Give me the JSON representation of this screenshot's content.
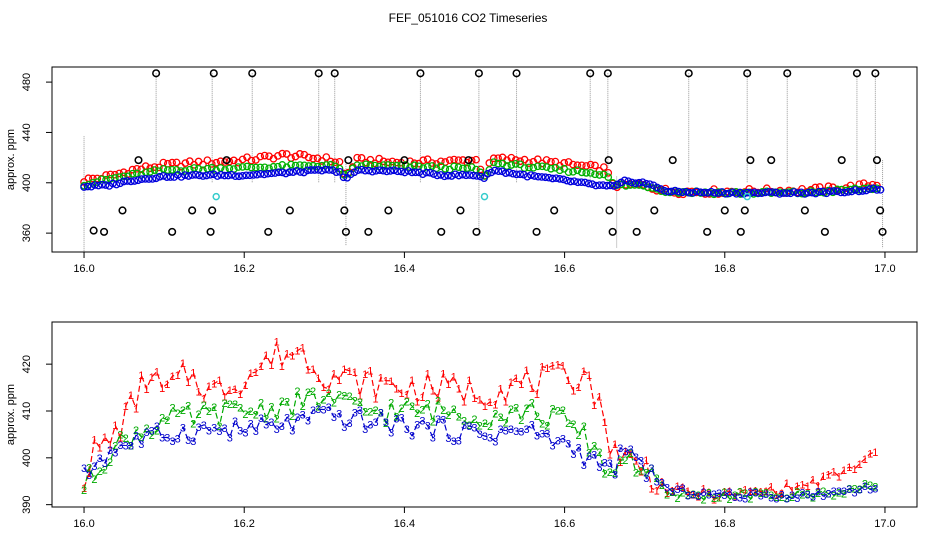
{
  "title": "FEF_051016  CO2 Timeseries",
  "chart_data": [
    {
      "type": "scatter",
      "panel": "top",
      "title": "FEF_051016  CO2 Timeseries",
      "xlabel": "",
      "ylabel": "approx. ppm",
      "xlim": [
        15.96,
        17.04
      ],
      "ylim": [
        345,
        492
      ],
      "xticks": [
        16.0,
        16.2,
        16.4,
        16.6,
        16.8,
        17.0
      ],
      "xtick_labels": [
        "16.0",
        "16.2",
        "16.4",
        "16.6",
        "16.8",
        "17.0"
      ],
      "yticks": [
        360,
        400,
        440,
        480
      ],
      "ytick_labels": [
        "360",
        "400",
        "440",
        "480"
      ],
      "series_colors": {
        "red": "#ff0000",
        "green": "#00b000",
        "blue": "#0000dd",
        "black": "#000000",
        "cyan": "#33cccc",
        "grey": "#999999"
      },
      "red_profile": [
        [
          16.0,
          402
        ],
        [
          16.03,
          405
        ],
        [
          16.06,
          410
        ],
        [
          16.1,
          414
        ],
        [
          16.15,
          416
        ],
        [
          16.2,
          418
        ],
        [
          16.25,
          422
        ],
        [
          16.3,
          419
        ],
        [
          16.32,
          416
        ],
        [
          16.326,
          404
        ],
        [
          16.34,
          418
        ],
        [
          16.4,
          416
        ],
        [
          16.45,
          417
        ],
        [
          16.49,
          418
        ],
        [
          16.5,
          406
        ],
        [
          16.51,
          419
        ],
        [
          16.55,
          418
        ],
        [
          16.6,
          415
        ],
        [
          16.65,
          411
        ],
        [
          16.662,
          398
        ],
        [
          16.7,
          398
        ],
        [
          16.73,
          393
        ],
        [
          16.8,
          393
        ],
        [
          16.9,
          394
        ],
        [
          16.95,
          396
        ],
        [
          16.99,
          399
        ]
      ],
      "green_profile": [
        [
          16.0,
          399
        ],
        [
          16.05,
          405
        ],
        [
          16.1,
          410
        ],
        [
          16.15,
          411
        ],
        [
          16.2,
          412
        ],
        [
          16.25,
          413
        ],
        [
          16.3,
          414
        ],
        [
          16.32,
          412
        ],
        [
          16.326,
          403
        ],
        [
          16.34,
          414
        ],
        [
          16.4,
          413
        ],
        [
          16.45,
          412
        ],
        [
          16.49,
          411
        ],
        [
          16.5,
          404
        ],
        [
          16.51,
          416
        ],
        [
          16.55,
          413
        ],
        [
          16.6,
          410
        ],
        [
          16.65,
          407
        ],
        [
          16.662,
          398
        ],
        [
          16.7,
          398
        ],
        [
          16.73,
          393
        ],
        [
          16.8,
          392
        ],
        [
          16.9,
          392
        ],
        [
          16.95,
          394
        ],
        [
          16.99,
          396
        ]
      ],
      "blue_profile": [
        [
          16.0,
          397
        ],
        [
          16.03,
          398
        ],
        [
          16.06,
          402
        ],
        [
          16.1,
          405
        ],
        [
          16.15,
          406
        ],
        [
          16.2,
          406
        ],
        [
          16.25,
          408
        ],
        [
          16.3,
          410
        ],
        [
          16.32,
          409
        ],
        [
          16.326,
          402
        ],
        [
          16.34,
          410
        ],
        [
          16.4,
          409
        ],
        [
          16.45,
          406
        ],
        [
          16.49,
          406
        ],
        [
          16.5,
          404
        ],
        [
          16.51,
          410
        ],
        [
          16.55,
          406
        ],
        [
          16.6,
          402
        ],
        [
          16.64,
          398
        ],
        [
          16.662,
          397
        ],
        [
          16.675,
          401
        ],
        [
          16.7,
          400
        ],
        [
          16.73,
          393
        ],
        [
          16.8,
          392
        ],
        [
          16.9,
          392
        ],
        [
          16.95,
          393
        ],
        [
          16.99,
          395
        ]
      ],
      "black_outliers": [
        [
          16.012,
          362
        ],
        [
          16.025,
          361
        ],
        [
          16.048,
          378
        ],
        [
          16.068,
          418
        ],
        [
          16.09,
          487
        ],
        [
          16.11,
          361
        ],
        [
          16.135,
          378
        ],
        [
          16.158,
          361
        ],
        [
          16.162,
          487
        ],
        [
          16.16,
          378
        ],
        [
          16.178,
          418
        ],
        [
          16.21,
          487
        ],
        [
          16.23,
          361
        ],
        [
          16.257,
          378
        ],
        [
          16.293,
          487
        ],
        [
          16.313,
          487
        ],
        [
          16.325,
          378
        ],
        [
          16.327,
          361
        ],
        [
          16.33,
          418
        ],
        [
          16.355,
          361
        ],
        [
          16.38,
          378
        ],
        [
          16.4,
          418
        ],
        [
          16.42,
          487
        ],
        [
          16.446,
          361
        ],
        [
          16.47,
          378
        ],
        [
          16.48,
          418
        ],
        [
          16.49,
          361
        ],
        [
          16.493,
          487
        ],
        [
          16.54,
          487
        ],
        [
          16.565,
          361
        ],
        [
          16.587,
          378
        ],
        [
          16.632,
          487
        ],
        [
          16.654,
          487
        ],
        [
          16.655,
          418
        ],
        [
          16.656,
          378
        ],
        [
          16.66,
          361
        ],
        [
          16.69,
          361
        ],
        [
          16.712,
          378
        ],
        [
          16.735,
          418
        ],
        [
          16.755,
          487
        ],
        [
          16.778,
          361
        ],
        [
          16.8,
          378
        ],
        [
          16.82,
          361
        ],
        [
          16.825,
          378
        ],
        [
          16.828,
          487
        ],
        [
          16.832,
          418
        ],
        [
          16.858,
          418
        ],
        [
          16.878,
          487
        ],
        [
          16.9,
          378
        ],
        [
          16.925,
          361
        ],
        [
          16.946,
          418
        ],
        [
          16.965,
          487
        ],
        [
          16.988,
          487
        ],
        [
          16.99,
          418
        ],
        [
          16.994,
          378
        ],
        [
          16.997,
          361
        ]
      ],
      "cyan_points": [
        [
          16.165,
          389
        ],
        [
          16.5,
          389
        ],
        [
          16.828,
          389
        ]
      ],
      "grey_spikes": [
        [
          16.0,
          345,
          437
        ],
        [
          16.09,
          400,
          487
        ],
        [
          16.16,
          400,
          487
        ],
        [
          16.21,
          400,
          487
        ],
        [
          16.293,
          400,
          487
        ],
        [
          16.313,
          400,
          487
        ],
        [
          16.327,
          350,
          418
        ],
        [
          16.42,
          400,
          487
        ],
        [
          16.493,
          358,
          487
        ],
        [
          16.54,
          400,
          487
        ],
        [
          16.632,
          400,
          487
        ],
        [
          16.654,
          400,
          487
        ],
        [
          16.665,
          348,
          405
        ],
        [
          16.755,
          400,
          487
        ],
        [
          16.828,
          400,
          487
        ],
        [
          16.878,
          400,
          487
        ],
        [
          16.965,
          400,
          487
        ],
        [
          16.988,
          400,
          487
        ],
        [
          16.997,
          348,
          418
        ]
      ]
    },
    {
      "type": "line",
      "panel": "bottom",
      "xlabel": "",
      "ylabel": "approx. ppm",
      "xlim": [
        15.96,
        17.04
      ],
      "ylim": [
        389.5,
        429
      ],
      "xticks": [
        16.0,
        16.2,
        16.4,
        16.6,
        16.8,
        17.0
      ],
      "xtick_labels": [
        "16.0",
        "16.2",
        "16.4",
        "16.6",
        "16.8",
        "17.0"
      ],
      "yticks": [
        390,
        400,
        410,
        420
      ],
      "ytick_labels": [
        "390",
        "400",
        "410",
        "420"
      ],
      "marker_labels": [
        "1",
        "2",
        "3"
      ],
      "series": [
        {
          "name": "1",
          "color": "#ff0000",
          "profile": [
            [
              16.0,
              396
            ],
            [
              16.01,
              401
            ],
            [
              16.03,
              403
            ],
            [
              16.06,
              411
            ],
            [
              16.08,
              418
            ],
            [
              16.1,
              414
            ],
            [
              16.13,
              418
            ],
            [
              16.16,
              414
            ],
            [
              16.2,
              417
            ],
            [
              16.24,
              422
            ],
            [
              16.27,
              423
            ],
            [
              16.3,
              418
            ],
            [
              16.35,
              416
            ],
            [
              16.4,
              415
            ],
            [
              16.45,
              415
            ],
            [
              16.5,
              414
            ],
            [
              16.55,
              416
            ],
            [
              16.6,
              417
            ],
            [
              16.63,
              418
            ],
            [
              16.655,
              404
            ],
            [
              16.675,
              400
            ],
            [
              16.7,
              398
            ],
            [
              16.73,
              393
            ],
            [
              16.8,
              392
            ],
            [
              16.9,
              394
            ],
            [
              16.95,
              397
            ],
            [
              16.99,
              401
            ]
          ],
          "amplitude": 3.2
        },
        {
          "name": "2",
          "color": "#00aa00",
          "profile": [
            [
              16.0,
              394
            ],
            [
              16.03,
              401
            ],
            [
              16.06,
              405
            ],
            [
              16.1,
              408
            ],
            [
              16.15,
              409
            ],
            [
              16.2,
              410
            ],
            [
              16.25,
              411
            ],
            [
              16.3,
              413
            ],
            [
              16.35,
              410
            ],
            [
              16.4,
              410
            ],
            [
              16.45,
              410
            ],
            [
              16.5,
              409
            ],
            [
              16.55,
              410
            ],
            [
              16.6,
              408
            ],
            [
              16.64,
              402
            ],
            [
              16.655,
              396
            ],
            [
              16.675,
              401
            ],
            [
              16.7,
              397
            ],
            [
              16.73,
              392
            ],
            [
              16.8,
              392
            ],
            [
              16.9,
              392
            ],
            [
              16.95,
              393
            ],
            [
              16.99,
              394
            ]
          ],
          "amplitude": 2.6
        },
        {
          "name": "3",
          "color": "#0000cc",
          "profile": [
            [
              16.0,
              396
            ],
            [
              16.02,
              400
            ],
            [
              16.05,
              403
            ],
            [
              16.1,
              405
            ],
            [
              16.15,
              406
            ],
            [
              16.2,
              406
            ],
            [
              16.25,
              407
            ],
            [
              16.3,
              409
            ],
            [
              16.35,
              408
            ],
            [
              16.4,
              407
            ],
            [
              16.45,
              406
            ],
            [
              16.5,
              405
            ],
            [
              16.55,
              406
            ],
            [
              16.6,
              403
            ],
            [
              16.64,
              399
            ],
            [
              16.655,
              397
            ],
            [
              16.675,
              401
            ],
            [
              16.7,
              398
            ],
            [
              16.73,
              393
            ],
            [
              16.8,
              392
            ],
            [
              16.9,
              392
            ],
            [
              16.95,
              393
            ],
            [
              16.99,
              394
            ]
          ],
          "amplitude": 2.2
        }
      ]
    }
  ]
}
